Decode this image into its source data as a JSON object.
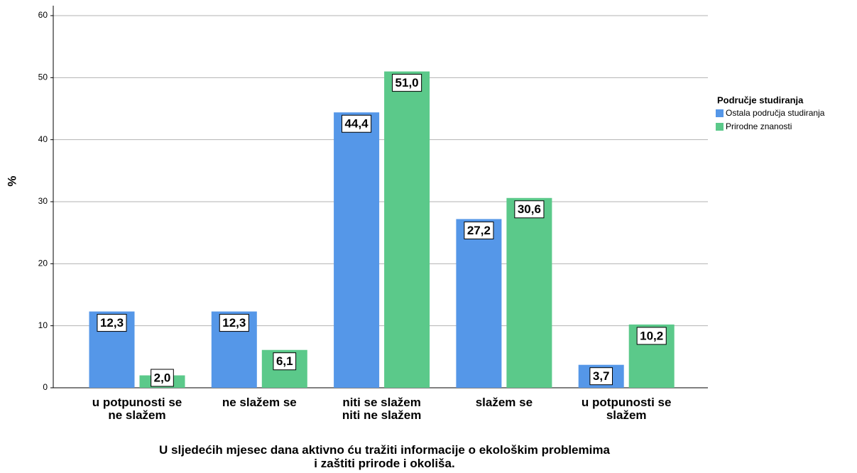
{
  "chart_data": {
    "type": "bar",
    "x_label": "U sljedećih mjesec dana aktivno ću tražiti informacije o ekološkim problemima\ni zaštiti prirode i okoliša.",
    "y_label": "%",
    "legend_title": "Područje studiranja",
    "categories": [
      "u potpunosti se\nne slažem",
      "ne slažem se",
      "niti se slažem\nniti ne slažem",
      "slažem se",
      "u potpunosti se\nslažem"
    ],
    "series": [
      {
        "name": "Ostala područja studiranja",
        "color": "#5597e8",
        "values": [
          12.3,
          12.3,
          44.4,
          27.2,
          3.7
        ],
        "value_labels": [
          "12,3",
          "12,3",
          "44,4",
          "27,2",
          "3,7"
        ]
      },
      {
        "name": "Prirodne znanosti",
        "color": "#5bc98a",
        "values": [
          2.0,
          6.1,
          51.0,
          30.6,
          10.2
        ],
        "value_labels": [
          "2,0",
          "6,1",
          "51,0",
          "30,6",
          "10,2"
        ]
      }
    ],
    "ylim": [
      0,
      60
    ],
    "yticks": [
      0,
      10,
      20,
      30,
      40,
      50,
      60
    ],
    "grid": true,
    "legend": "right"
  }
}
